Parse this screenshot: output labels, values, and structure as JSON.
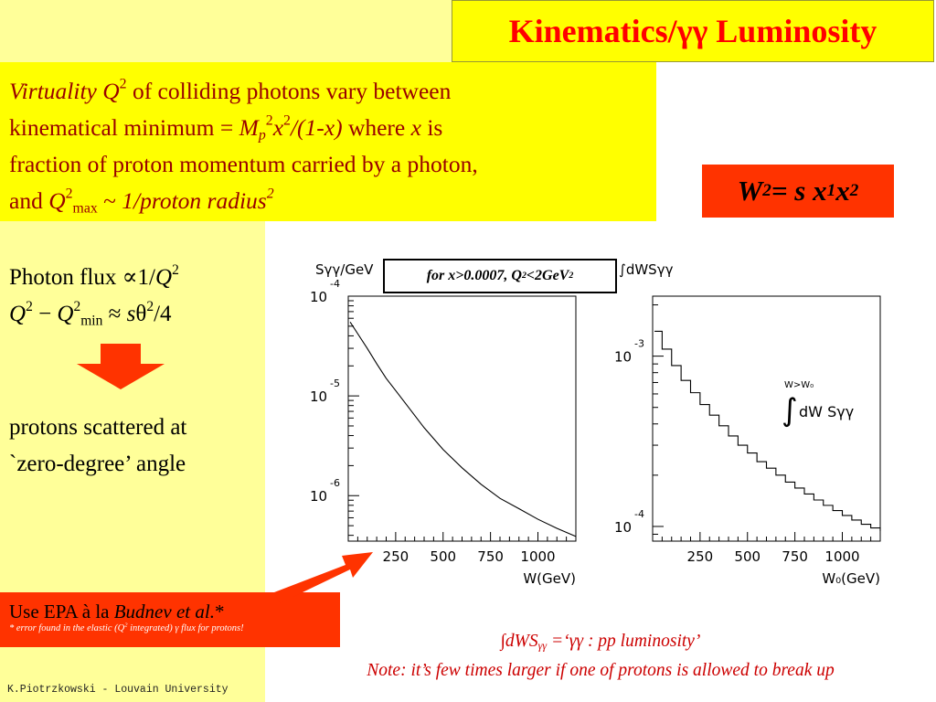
{
  "title": "Kinematics/γγ Luminosity",
  "intro": {
    "line1": {
      "virtuality": "Virtuality",
      "q": "Q",
      "q_exp": "2",
      "rest": " of colliding photons vary between"
    },
    "line2": {
      "prefix": "kinematical minimum = ",
      "m": "M",
      "m_sub": "p",
      "m_exp": "2",
      "x": "x",
      "x_exp": "2",
      "frac": "/(1-x)",
      "where": " where ",
      "xvar": "x",
      "is": " is"
    },
    "line3": "fraction of proton momentum carried by a photon,",
    "line4": {
      "and": "and ",
      "q": "Q",
      "q_exp": "2",
      "q_sub": "max",
      "tilde": " ~ ",
      "radius": "1/proton radius",
      "r_exp": "2"
    }
  },
  "w2": {
    "w": "W",
    "w_exp": "2",
    "eq": " = s x",
    "s1": "1",
    "x2": " x",
    "s2": "2"
  },
  "flux": {
    "line1_prefix": "Photon flux ∝1/",
    "q": "Q",
    "q_exp": "2",
    "line2_q": "Q",
    "line2_exp1": "2",
    "minus": " − ",
    "q2": "Q",
    "line2_exp2": "2",
    "min_sub": "min",
    "approx": " ≈ ",
    "s": "s",
    "theta": "θ",
    "theta_exp": "2",
    "div": "/4"
  },
  "scattered": {
    "line1": "protons scattered at",
    "line2": "`zero-degree’ angle"
  },
  "epa": {
    "prefix": "Use EPA à la ",
    "author": "Budnev et al.",
    "star": "*",
    "footnote_a": "* error found in the elastic (",
    "footnote_q": "Q",
    "footnote_exp": "2",
    "footnote_b": " integrated) γ flux for protons!"
  },
  "condition": {
    "text_a": "for x>0.0007, Q",
    "exp": "2",
    "text_b": "<2GeV",
    "exp2": "2"
  },
  "lumi": {
    "integral": "∫",
    "dws": "dWS",
    "sub": "γγ",
    "rest": " =‘γγ : pp luminosity’",
    "note": "Note: it’s few times larger if one of protons is allowed to break up"
  },
  "footer": "K.Piotrzkowski - Louvain University",
  "colors": {
    "title_red": "#ff0000",
    "panel_yellow": "#ffff99",
    "box_yellow": "#ffff00",
    "box_red": "#ff3300",
    "note_red": "#cc0000",
    "intro_text": "#990000"
  },
  "chart_data": [
    {
      "type": "line",
      "ylabel": "Sγγ/GeV",
      "xlabel": "W(GeV)",
      "y_scale": "log",
      "ylim": [
        3.5e-07,
        0.0001
      ],
      "xlim": [
        0,
        1200
      ],
      "x_ticks": [
        250,
        500,
        750,
        1000
      ],
      "y_ticks": [
        {
          "value": 0.0001,
          "base": "10",
          "exp": "-4"
        },
        {
          "value": 1e-05,
          "base": "10",
          "exp": "-5"
        },
        {
          "value": 1e-06,
          "base": "10",
          "exp": "-6"
        }
      ],
      "x": [
        10,
        50,
        100,
        150,
        200,
        250,
        300,
        400,
        500,
        600,
        700,
        800,
        900,
        1000,
        1100,
        1200
      ],
      "y": [
        5.5e-05,
        4.2e-05,
        3e-05,
        2.1e-05,
        1.5e-05,
        1.13e-05,
        8.5e-06,
        4.8e-06,
        2.9e-06,
        1.9e-06,
        1.3e-06,
        9.4e-07,
        7.4e-07,
        5.8e-07,
        4.7e-07,
        3.9e-07
      ]
    },
    {
      "type": "line",
      "step": true,
      "ylabel": "∫dWSγγ",
      "xlabel": "W₀(GeV)",
      "annotation": {
        "upper": "W>W₀",
        "integral": "∫",
        "body": "dW Sγγ"
      },
      "y_scale": "log",
      "ylim": [
        8.2e-05,
        0.00225
      ],
      "xlim": [
        0,
        1200
      ],
      "x_ticks": [
        250,
        500,
        750,
        1000
      ],
      "y_ticks": [
        {
          "value": 0.001,
          "base": "10",
          "exp": "-3"
        },
        {
          "value": 0.0001,
          "base": "10",
          "exp": "-4"
        }
      ],
      "x": [
        10,
        50,
        100,
        150,
        200,
        250,
        300,
        350,
        400,
        450,
        500,
        550,
        600,
        650,
        700,
        750,
        800,
        850,
        900,
        950,
        1000,
        1050,
        1100,
        1150,
        1200
      ],
      "y": [
        0.0014,
        0.0011,
        0.00088,
        0.00072,
        0.00061,
        0.00052,
        0.00045,
        0.00039,
        0.00034,
        0.0003,
        0.00027,
        0.00024,
        0.00022,
        0.0002,
        0.000182,
        0.000168,
        0.000155,
        0.000143,
        0.000133,
        0.000124,
        0.000116,
        0.000109,
        0.000103,
        9.8e-05,
        9.4e-05
      ]
    }
  ]
}
